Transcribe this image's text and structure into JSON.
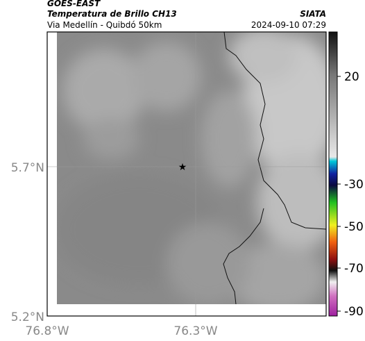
{
  "header": {
    "title": "GOES-EAST",
    "subtitle": "Temperatura de Brillo CH13",
    "route": "Via Medellín - Quibdó 50km",
    "source": "SIATA",
    "timestamp": "2024-09-10 07:29"
  },
  "map": {
    "lat_labels": [
      "5.7°N",
      "5.2°N"
    ],
    "lon_labels": [
      "76.8°W",
      "76.3°W"
    ]
  },
  "colorbar": {
    "labels": [
      "20",
      "-30",
      "-50",
      "-70",
      "-90"
    ]
  }
}
